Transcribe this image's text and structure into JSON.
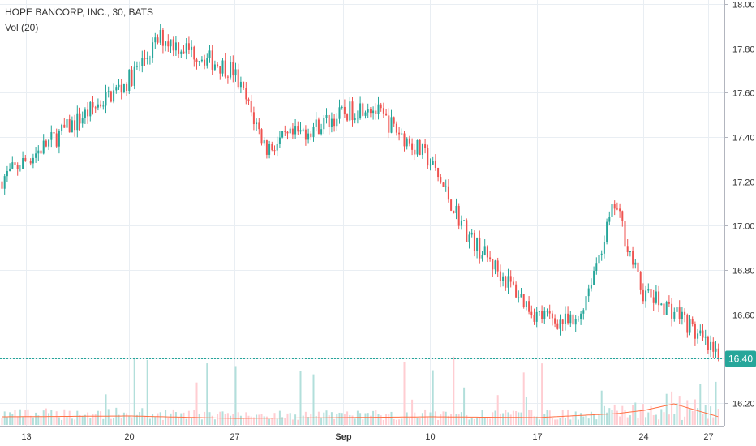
{
  "legend": {
    "symbol_line": "HOPE BANCORP, INC., 30, BATS",
    "volume_line": "Vol (20)"
  },
  "last_price": "16.40",
  "colors": {
    "up": "#26a69a",
    "down": "#ef5350",
    "up_volume": "#b2dfdb",
    "down_volume": "#ffcdd2",
    "volume_ma": "#ff7043",
    "grid": "#e9eef3",
    "axis_text": "#333333",
    "price_line": "#26a69a"
  },
  "chart_data": {
    "type": "candlestick",
    "title": "HOPE BANCORP, INC., 30, BATS",
    "subtitle": "Vol (20)",
    "y_axis": {
      "ticks": [
        "16.20",
        "16.40",
        "16.60",
        "16.80",
        "17.00",
        "17.20",
        "17.40",
        "17.60",
        "17.80",
        "18.00"
      ],
      "range": [
        16.16,
        18.0
      ]
    },
    "x_axis": {
      "ticks": [
        "13",
        "20",
        "27",
        "Sep",
        "10",
        "17",
        "24",
        "27"
      ]
    },
    "current_price": 16.4,
    "price_path": [
      {
        "day": "13",
        "value": 17.2
      },
      {
        "day": "20",
        "value": 17.65
      },
      {
        "day": "22",
        "value": 17.85
      },
      {
        "day": "27",
        "value": 17.7
      },
      {
        "day": "28",
        "value": 17.35
      },
      {
        "day": "Sep",
        "value": 17.5
      },
      {
        "day": "5",
        "value": 17.55
      },
      {
        "day": "10",
        "value": 17.3
      },
      {
        "day": "13",
        "value": 16.95
      },
      {
        "day": "17",
        "value": 16.6
      },
      {
        "day": "19",
        "value": 16.55
      },
      {
        "day": "21",
        "value": 17.1
      },
      {
        "day": "24",
        "value": 16.7
      },
      {
        "day": "26",
        "value": 16.6
      },
      {
        "day": "27",
        "value": 16.4
      }
    ],
    "volume_ma_path": [
      {
        "day": "13",
        "value": 1.0
      },
      {
        "day": "20",
        "value": 1.1
      },
      {
        "day": "27",
        "value": 0.8
      },
      {
        "day": "Sep",
        "value": 0.9
      },
      {
        "day": "10",
        "value": 1.0
      },
      {
        "day": "17",
        "value": 0.9
      },
      {
        "day": "21",
        "value": 1.4
      },
      {
        "day": "24",
        "value": 1.8
      },
      {
        "day": "26",
        "value": 2.6
      },
      {
        "day": "27",
        "value": 1.0
      }
    ],
    "grid": true,
    "legend_position": "top-left"
  }
}
